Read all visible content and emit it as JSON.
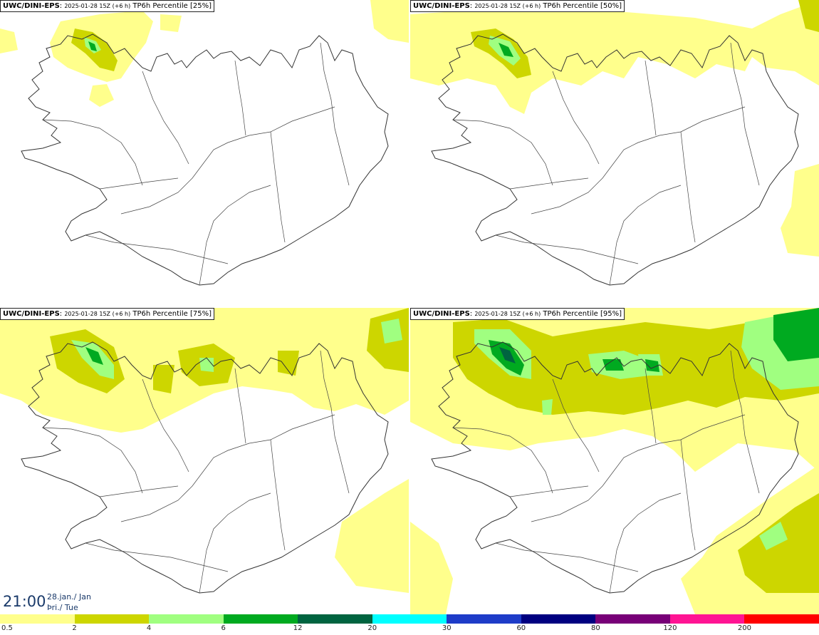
{
  "panels": [
    {
      "model": "UWC/DINI-EPS",
      "meta": "2025-01-28 15Z (+6 h)",
      "field": "TP6h Percentile",
      "pct": "[25%]"
    },
    {
      "model": "UWC/DINI-EPS",
      "meta": "2025-01-28 15Z (+6 h)",
      "field": "TP6h Percentile",
      "pct": "[50%]"
    },
    {
      "model": "UWC/DINI-EPS",
      "meta": "2025-01-28 15Z (+6 h)",
      "field": "TP6h Percentile",
      "pct": "[75%]"
    },
    {
      "model": "UWC/DINI-EPS",
      "meta": "2025-01-28 15Z (+6 h)",
      "field": "TP6h Percentile",
      "pct": "[95%]"
    }
  ],
  "time": {
    "clock": "21:00",
    "date_line1": "28.jan./ Jan",
    "date_line2": "Þri./ Tue"
  },
  "legend": {
    "colors": [
      "#ffff8c",
      "#cdd600",
      "#a0ff80",
      "#00aa20",
      "#006440",
      "#00ffff",
      "#1e3cc8",
      "#000080",
      "#780078",
      "#ff1493",
      "#ff0000"
    ],
    "labels": [
      "0.5",
      "2",
      "4",
      "6",
      "12",
      "20",
      "30",
      "60",
      "80",
      "120",
      "200"
    ]
  }
}
